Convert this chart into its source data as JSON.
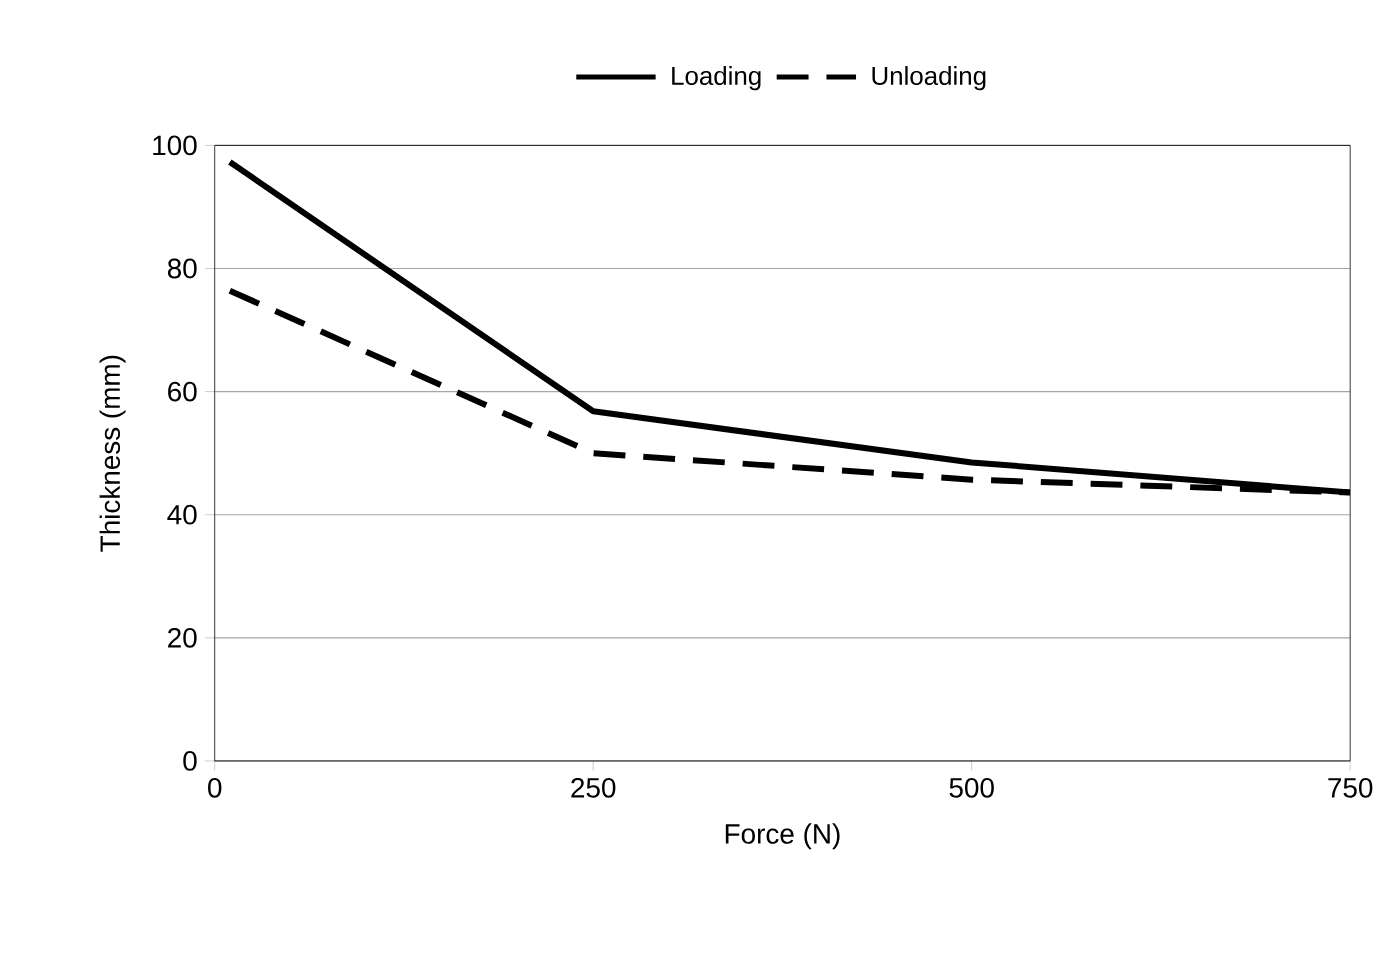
{
  "chart_data": {
    "type": "line",
    "xlabel": "Force (N)",
    "ylabel": "Thickness (mm)",
    "x": [
      10,
      250,
      500,
      750
    ],
    "series": [
      {
        "name": "Loading",
        "color": "#000000",
        "values": [
          97.3,
          56.8,
          48.5,
          43.6
        ],
        "line_style": "solid"
      },
      {
        "name": "Unloading",
        "color": "#000000",
        "values": [
          76.4,
          50,
          45.7,
          43.6
        ],
        "line_style": "dashed"
      }
    ],
    "xlim": [
      0,
      750
    ],
    "ylim": [
      0,
      100
    ],
    "xticks": [
      0,
      250,
      500,
      750
    ],
    "yticks": [
      0,
      20,
      40,
      60,
      80,
      100
    ],
    "grid": "y",
    "legend": "top",
    "marker": "none"
  }
}
